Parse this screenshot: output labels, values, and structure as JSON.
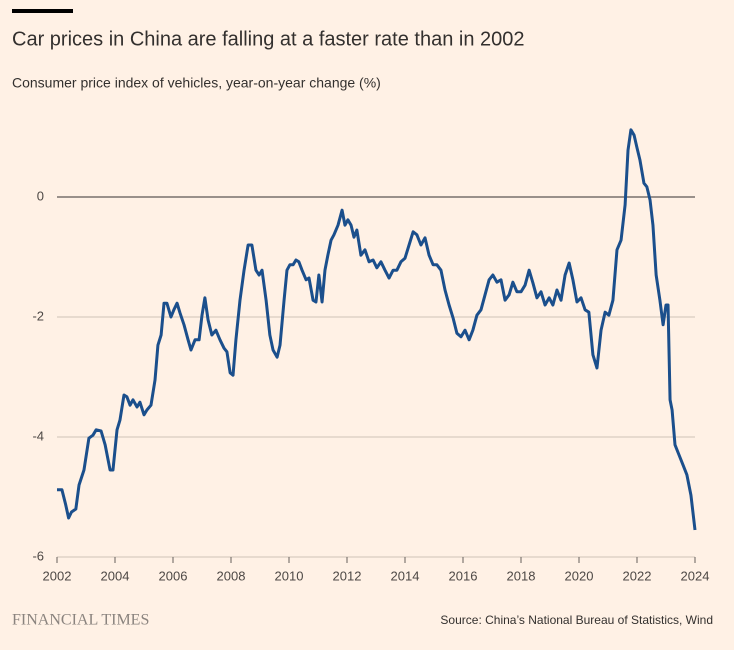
{
  "chart_data": {
    "type": "line",
    "title": "Car prices in China are falling at a faster rate than in 2002",
    "subtitle": "Consumer price index of vehicles, year-on-year change (%)",
    "source": "Source: China’s National Bureau of Statistics, Wind",
    "brand": "FINANCIAL TIMES",
    "color": "#1b4f8c",
    "grid": true,
    "xlim": [
      2002,
      2024
    ],
    "xticks": [
      2002,
      2004,
      2006,
      2008,
      2010,
      2012,
      2014,
      2016,
      2018,
      2020,
      2022,
      2024
    ],
    "ylim": [
      -6,
      1.4
    ],
    "yticks": [
      0,
      -2,
      -4,
      -6
    ],
    "x": [
      2002.0,
      2002.17,
      2002.3,
      2002.4,
      2002.5,
      2002.65,
      2002.76,
      2002.93,
      2003.1,
      2003.24,
      2003.35,
      2003.52,
      2003.66,
      2003.83,
      2003.93,
      2004.07,
      2004.17,
      2004.31,
      2004.41,
      2004.52,
      2004.62,
      2004.76,
      2004.86,
      2005.0,
      2005.1,
      2005.24,
      2005.38,
      2005.48,
      2005.59,
      2005.69,
      2005.79,
      2005.93,
      2006.03,
      2006.14,
      2006.24,
      2006.38,
      2006.52,
      2006.62,
      2006.76,
      2006.9,
      2007.0,
      2007.1,
      2007.21,
      2007.34,
      2007.48,
      2007.62,
      2007.76,
      2007.86,
      2007.97,
      2008.07,
      2008.17,
      2008.31,
      2008.45,
      2008.59,
      2008.72,
      2008.86,
      2008.97,
      2009.07,
      2009.21,
      2009.34,
      2009.45,
      2009.59,
      2009.69,
      2009.83,
      2009.93,
      2010.03,
      2010.14,
      2010.24,
      2010.34,
      2010.45,
      2010.59,
      2010.69,
      2010.83,
      2010.93,
      2011.03,
      2011.14,
      2011.24,
      2011.34,
      2011.45,
      2011.55,
      2011.69,
      2011.83,
      2011.93,
      2012.03,
      2012.14,
      2012.24,
      2012.34,
      2012.48,
      2012.62,
      2012.76,
      2012.9,
      2013.03,
      2013.17,
      2013.31,
      2013.45,
      2013.59,
      2013.72,
      2013.86,
      2014.0,
      2014.14,
      2014.28,
      2014.41,
      2014.55,
      2014.69,
      2014.83,
      2014.97,
      2015.1,
      2015.24,
      2015.38,
      2015.52,
      2015.66,
      2015.79,
      2015.93,
      2016.07,
      2016.21,
      2016.34,
      2016.48,
      2016.62,
      2016.76,
      2016.9,
      2017.03,
      2017.17,
      2017.31,
      2017.45,
      2017.59,
      2017.72,
      2017.86,
      2018.0,
      2018.14,
      2018.28,
      2018.41,
      2018.55,
      2018.69,
      2018.83,
      2018.97,
      2019.1,
      2019.24,
      2019.38,
      2019.52,
      2019.66,
      2019.79,
      2019.93,
      2020.07,
      2020.21,
      2020.34,
      2020.48,
      2020.62,
      2020.76,
      2020.9,
      2021.03,
      2021.17,
      2021.31,
      2021.45,
      2021.59,
      2021.69,
      2021.79,
      2021.9,
      2022.0,
      2022.1,
      2022.24,
      2022.34,
      2022.45,
      2022.55,
      2022.66,
      2022.79,
      2022.9,
      2023.0,
      2023.07,
      2023.14,
      2023.21,
      2023.31,
      2023.45,
      2023.59,
      2023.72,
      2023.86,
      2024.0
    ],
    "values": [
      -4.88,
      -4.88,
      -5.13,
      -5.35,
      -5.25,
      -5.2,
      -4.8,
      -4.55,
      -4.02,
      -3.97,
      -3.88,
      -3.9,
      -4.13,
      -4.55,
      -4.55,
      -3.88,
      -3.72,
      -3.3,
      -3.33,
      -3.47,
      -3.38,
      -3.5,
      -3.42,
      -3.63,
      -3.55,
      -3.47,
      -3.05,
      -2.47,
      -2.3,
      -1.77,
      -1.77,
      -2.0,
      -1.88,
      -1.77,
      -1.93,
      -2.13,
      -2.38,
      -2.55,
      -2.38,
      -2.38,
      -1.97,
      -1.68,
      -2.05,
      -2.3,
      -2.22,
      -2.38,
      -2.52,
      -2.58,
      -2.93,
      -2.97,
      -2.38,
      -1.72,
      -1.22,
      -0.8,
      -0.8,
      -1.22,
      -1.3,
      -1.22,
      -1.72,
      -2.3,
      -2.55,
      -2.67,
      -2.47,
      -1.72,
      -1.22,
      -1.13,
      -1.13,
      -1.05,
      -1.08,
      -1.22,
      -1.38,
      -1.35,
      -1.72,
      -1.75,
      -1.3,
      -1.75,
      -1.22,
      -0.97,
      -0.72,
      -0.63,
      -0.47,
      -0.22,
      -0.47,
      -0.38,
      -0.47,
      -0.67,
      -0.55,
      -0.97,
      -0.88,
      -1.08,
      -1.05,
      -1.18,
      -1.08,
      -1.22,
      -1.35,
      -1.22,
      -1.22,
      -1.08,
      -1.02,
      -0.8,
      -0.58,
      -0.63,
      -0.8,
      -0.68,
      -0.97,
      -1.13,
      -1.13,
      -1.22,
      -1.55,
      -1.8,
      -2.02,
      -2.27,
      -2.33,
      -2.22,
      -2.38,
      -2.22,
      -1.97,
      -1.88,
      -1.63,
      -1.38,
      -1.3,
      -1.42,
      -1.38,
      -1.72,
      -1.63,
      -1.42,
      -1.58,
      -1.58,
      -1.47,
      -1.22,
      -1.43,
      -1.68,
      -1.58,
      -1.8,
      -1.68,
      -1.8,
      -1.55,
      -1.72,
      -1.3,
      -1.1,
      -1.38,
      -1.75,
      -1.68,
      -1.88,
      -1.92,
      -2.63,
      -2.85,
      -2.22,
      -1.92,
      -1.97,
      -1.72,
      -0.88,
      -0.72,
      -0.13,
      0.78,
      1.12,
      1.03,
      0.82,
      0.62,
      0.23,
      0.17,
      -0.05,
      -0.47,
      -1.3,
      -1.72,
      -2.13,
      -1.8,
      -1.8,
      -3.38,
      -3.55,
      -4.13,
      -4.3,
      -4.47,
      -4.63,
      -4.97,
      -5.55
    ]
  }
}
